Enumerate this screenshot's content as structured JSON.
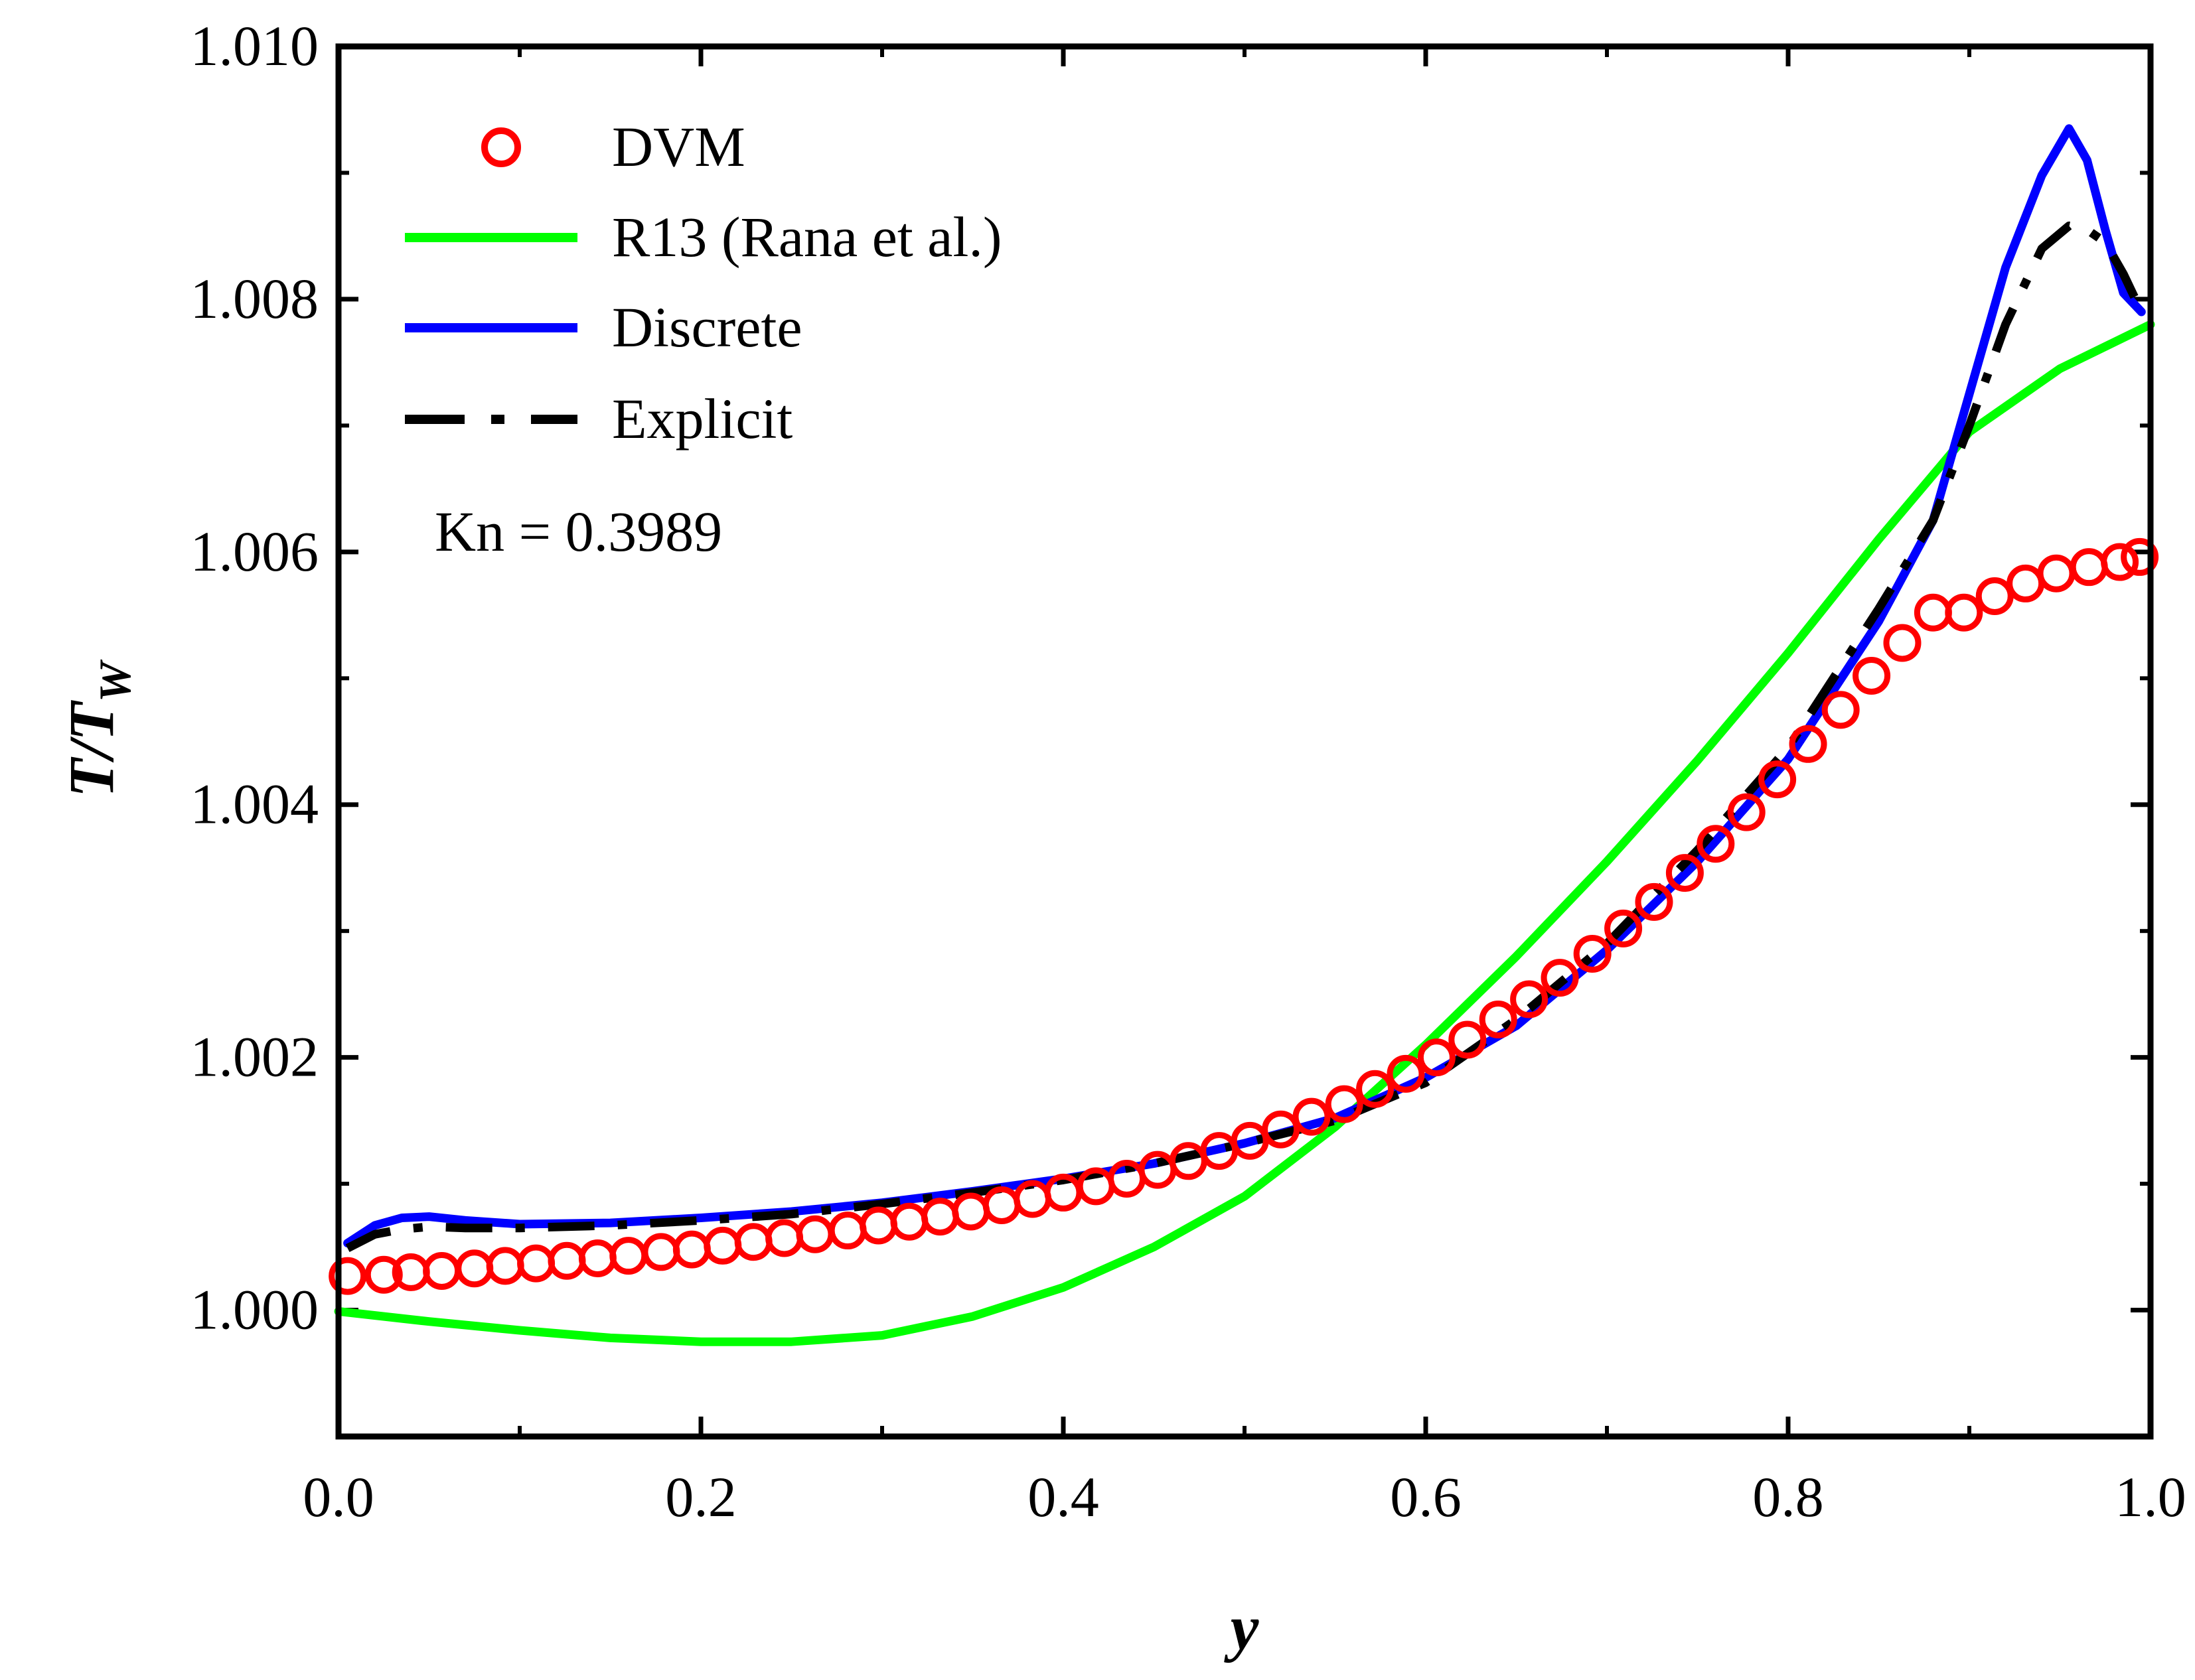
{
  "chart_data": {
    "type": "line",
    "title": "",
    "xlabel": "y",
    "ylabel": "T/T_W",
    "ylabel_main": "T/T",
    "ylabel_sub": "W",
    "xlim": [
      0.0,
      1.0
    ],
    "ylim": [
      0.999,
      1.01
    ],
    "xticks": [
      0.0,
      0.2,
      0.4,
      0.6,
      0.8,
      1.0
    ],
    "xtick_labels": [
      "0.0",
      "0.2",
      "0.4",
      "0.6",
      "0.8",
      "1.0"
    ],
    "yticks": [
      1.0,
      1.002,
      1.004,
      1.006,
      1.008,
      1.01
    ],
    "ytick_labels": [
      "1.000",
      "1.002",
      "1.004",
      "1.006",
      "1.008",
      "1.010"
    ],
    "annotation": "Kn = 0.3989",
    "legend_position": "top-left",
    "series": [
      {
        "name": "DVM",
        "style": "markers",
        "color": "#ff0000",
        "x": [
          0.005,
          0.025,
          0.04,
          0.057,
          0.075,
          0.092,
          0.109,
          0.126,
          0.143,
          0.16,
          0.178,
          0.195,
          0.212,
          0.229,
          0.246,
          0.263,
          0.281,
          0.298,
          0.315,
          0.332,
          0.349,
          0.366,
          0.383,
          0.4,
          0.418,
          0.435,
          0.452,
          0.469,
          0.486,
          0.503,
          0.52,
          0.537,
          0.555,
          0.572,
          0.589,
          0.606,
          0.623,
          0.64,
          0.657,
          0.674,
          0.692,
          0.709,
          0.726,
          0.743,
          0.76,
          0.777,
          0.794,
          0.811,
          0.829,
          0.846,
          0.863,
          0.88,
          0.897,
          0.914,
          0.931,
          0.948,
          0.966,
          0.983,
          0.994
        ],
        "y": [
          1.00027,
          1.00028,
          1.0003,
          1.00031,
          1.00033,
          1.00035,
          1.00037,
          1.00039,
          1.00041,
          1.00043,
          1.00046,
          1.00048,
          1.00051,
          1.00054,
          1.00057,
          1.0006,
          1.00063,
          1.00067,
          1.0007,
          1.00074,
          1.00078,
          1.00083,
          1.00088,
          1.00093,
          1.00098,
          1.00104,
          1.00111,
          1.00118,
          1.00126,
          1.00134,
          1.00143,
          1.00153,
          1.00163,
          1.00175,
          1.00187,
          1.002,
          1.00214,
          1.0023,
          1.00246,
          1.00263,
          1.00282,
          1.00302,
          1.00323,
          1.00346,
          1.00369,
          1.00394,
          1.0042,
          1.00448,
          1.00475,
          1.00502,
          1.00528,
          1.00552,
          1.00552,
          1.00565,
          1.00575,
          1.00583,
          1.00588,
          1.00592,
          1.00596
        ]
      },
      {
        "name": "R13 (Rana et al.)",
        "style": "solid",
        "color": "#00ff00",
        "x": [
          0.0,
          0.05,
          0.1,
          0.15,
          0.2,
          0.25,
          0.3,
          0.35,
          0.4,
          0.45,
          0.5,
          0.55,
          0.6,
          0.65,
          0.7,
          0.75,
          0.8,
          0.85,
          0.9,
          0.95,
          1.0
        ],
        "y": [
          0.99999,
          0.99991,
          0.99984,
          0.99978,
          0.99975,
          0.99975,
          0.9998,
          0.99995,
          1.00018,
          1.0005,
          1.0009,
          1.00145,
          1.0021,
          1.0028,
          1.00355,
          1.00435,
          1.0052,
          1.0061,
          1.00695,
          1.00745,
          1.0078
        ]
      },
      {
        "name": "Discrete",
        "style": "solid",
        "color": "#0000ff",
        "x": [
          0.005,
          0.02,
          0.035,
          0.05,
          0.07,
          0.1,
          0.15,
          0.2,
          0.25,
          0.3,
          0.35,
          0.4,
          0.45,
          0.5,
          0.55,
          0.6,
          0.65,
          0.7,
          0.75,
          0.8,
          0.85,
          0.88,
          0.9,
          0.92,
          0.94,
          0.955,
          0.965,
          0.975,
          0.985,
          0.995
        ],
        "y": [
          1.00053,
          1.00067,
          1.00073,
          1.00074,
          1.00071,
          1.00068,
          1.00069,
          1.00073,
          1.00078,
          1.00085,
          1.00094,
          1.00104,
          1.00116,
          1.00132,
          1.00152,
          1.00184,
          1.00225,
          1.00285,
          1.00355,
          1.00436,
          1.00545,
          1.00625,
          1.00725,
          1.00825,
          1.00898,
          1.00935,
          1.0091,
          1.00855,
          1.00805,
          1.0079
        ]
      },
      {
        "name": "Explicit",
        "style": "dash-dot",
        "color": "#000000",
        "x": [
          0.005,
          0.02,
          0.035,
          0.05,
          0.07,
          0.1,
          0.15,
          0.2,
          0.25,
          0.3,
          0.35,
          0.4,
          0.45,
          0.5,
          0.55,
          0.6,
          0.65,
          0.7,
          0.75,
          0.8,
          0.85,
          0.88,
          0.9,
          0.92,
          0.94,
          0.955,
          0.965,
          0.975,
          0.985,
          0.995
        ],
        "y": [
          1.00049,
          1.0006,
          1.00064,
          1.00066,
          1.00065,
          1.00065,
          1.00067,
          1.00071,
          1.00076,
          1.00084,
          1.00093,
          1.00103,
          1.00116,
          1.00132,
          1.0015,
          1.0018,
          1.0023,
          1.0029,
          1.00364,
          1.00445,
          1.00555,
          1.00625,
          1.007,
          1.0078,
          1.0084,
          1.00858,
          1.00855,
          1.00845,
          1.0082,
          1.0079
        ]
      }
    ]
  }
}
